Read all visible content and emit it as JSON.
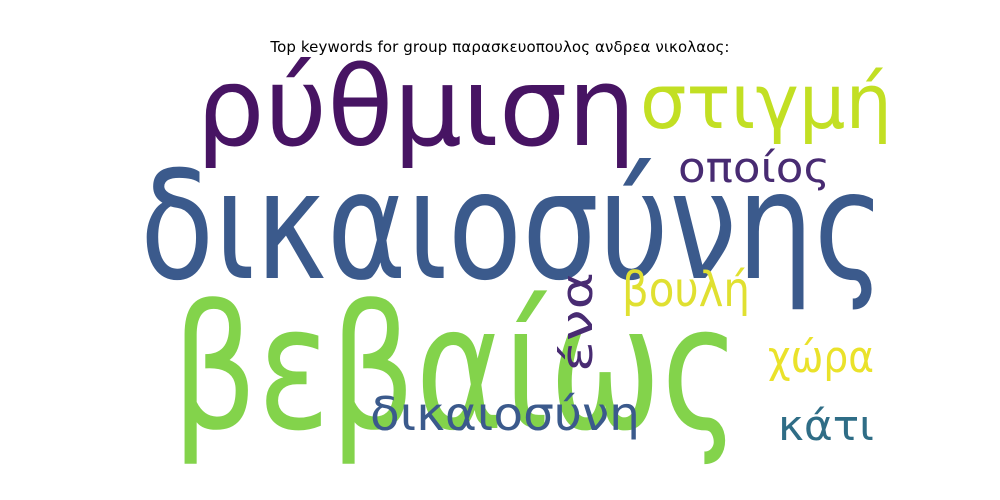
{
  "chart_data": {
    "type": "wordcloud",
    "title": "Top keywords for group παρασκευοπουλος ανδρεα νικολαος:",
    "words": [
      {
        "text": "δικαιοσύνης",
        "color": "#3b5a8c"
      },
      {
        "text": "βεβαίως",
        "color": "#83d34b"
      },
      {
        "text": "ρύθμιση",
        "color": "#471463"
      },
      {
        "text": "στιγμή",
        "color": "#c2df23"
      },
      {
        "text": "οποίος",
        "color": "#482b72"
      },
      {
        "text": "βουλή",
        "color": "#e0e031"
      },
      {
        "text": "ένα",
        "color": "#482b72"
      },
      {
        "text": "χώρα",
        "color": "#eae22a"
      },
      {
        "text": "δικαιοσύνη",
        "color": "#3b5a8c"
      },
      {
        "text": "κάτι",
        "color": "#2f6d86"
      }
    ]
  }
}
